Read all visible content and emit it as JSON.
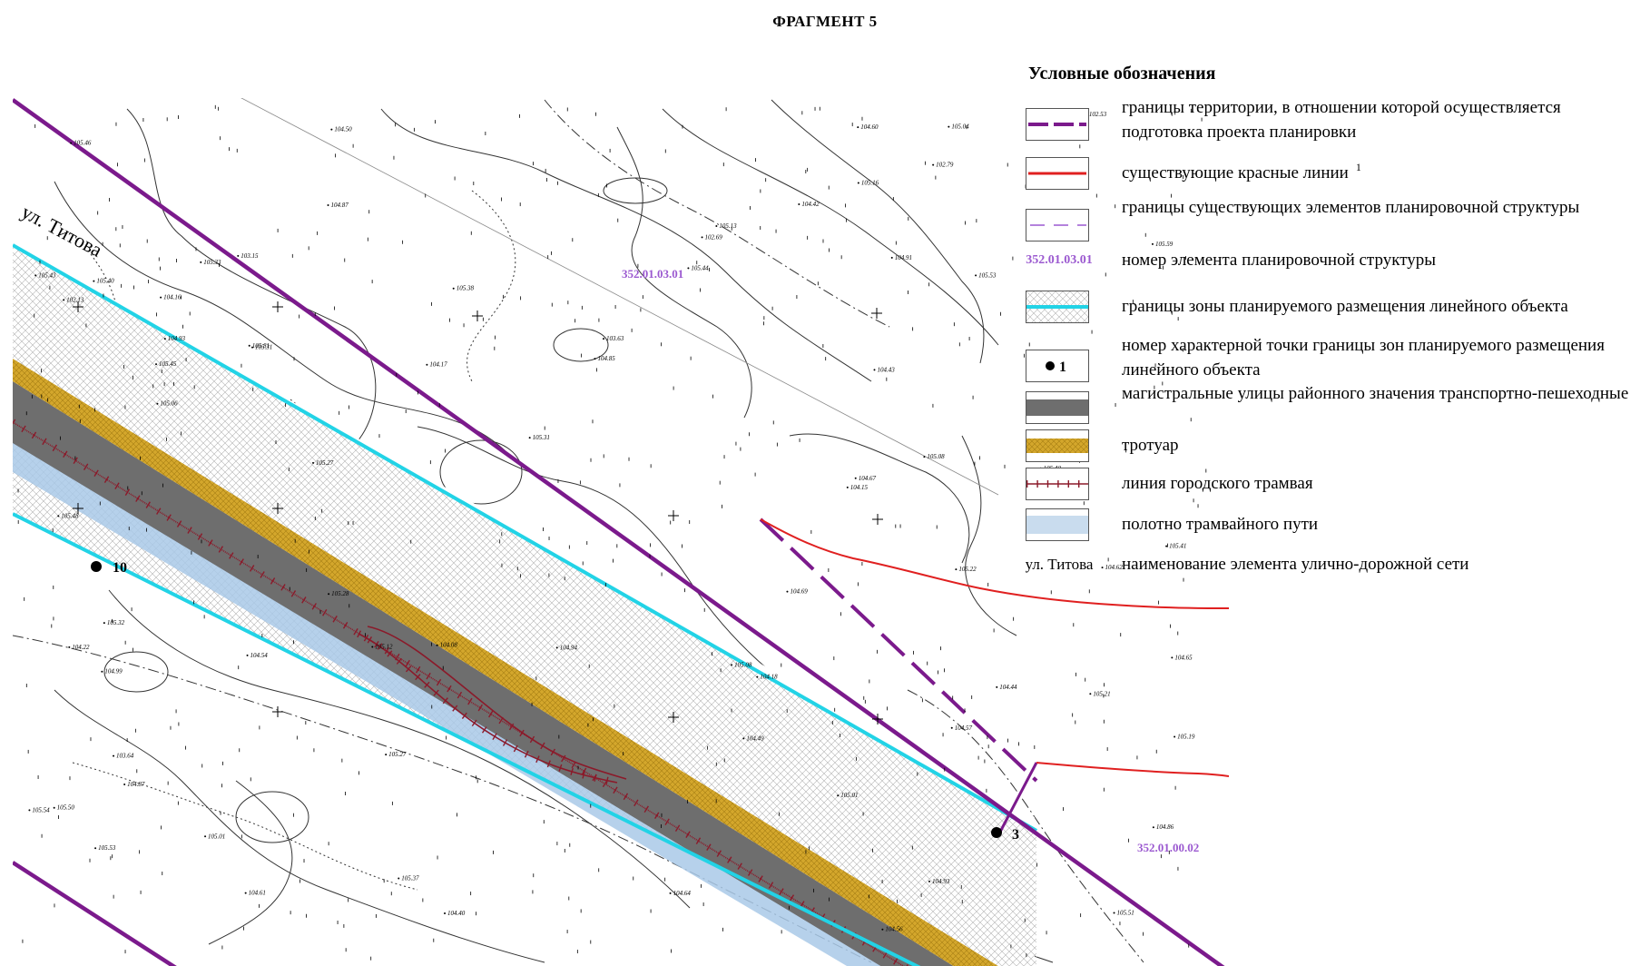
{
  "title": "ФРАГМЕНТ 5",
  "legend": {
    "title": "Условные обозначения",
    "items": [
      {
        "id": "boundary",
        "text": "границы территории, в отношении которой осуществляется подготовка проекта планировки"
      },
      {
        "id": "red-lines",
        "text": "существующие красные линии",
        "footnote": "1"
      },
      {
        "id": "elements",
        "text": "границы существующих элементов планировочной структуры"
      },
      {
        "id": "element-number",
        "sample": "352.01.03.01",
        "text": "номер элемента планировочной структуры"
      },
      {
        "id": "zone",
        "text": "границы зоны планируемого размещения линейного объекта"
      },
      {
        "id": "point",
        "sample": "1",
        "text": "номер характерной точки границы зон планируемого размещения линейного объекта"
      },
      {
        "id": "road",
        "text": "магистральные улицы районного значения транспортно-пешеходные"
      },
      {
        "id": "sidewalk",
        "text": "тротуар"
      },
      {
        "id": "tram-line",
        "text": "линия городского трамвая"
      },
      {
        "id": "tram-bed",
        "text": "полотно трамвайного пути"
      },
      {
        "id": "street-name",
        "sample": "ул. Титова",
        "text": "наименование элемента улично-дорожной сети"
      }
    ]
  },
  "map": {
    "street_label": "ул. Титова",
    "element_labels": [
      "352.01.03.01",
      "352.01.00.02"
    ],
    "points": [
      "10",
      "3"
    ],
    "colors": {
      "boundary": "#7b1a8c",
      "red_line": "#e02020",
      "zone": "#22d3e6",
      "road": "#6e6e6e",
      "sidewalk": "#d4a72c",
      "tram_line": "#8b1a2a",
      "tram_bed": "#a9c9e8",
      "element_label": "#9b59d0"
    },
    "elevations": [
      "105.04",
      "105.08",
      "105.22",
      "105.25",
      "104.94",
      "104.93",
      "104.87",
      "104.08",
      "104.91",
      "104.60",
      "104.57",
      "104.22",
      "104.16",
      "104.93",
      "104.65",
      "104.49",
      "104.69",
      "104.62",
      "104.64",
      "104.56",
      "104.54",
      "104.87",
      "105.01",
      "105.45",
      "105.32",
      "105.40",
      "105.50",
      "105.27",
      "105.13",
      "105.28",
      "105.37",
      "105.31",
      "105.01",
      "105.31",
      "105.43",
      "105.46",
      "105.41",
      "105.38",
      "105.27",
      "105.12",
      "105.08",
      "105.06",
      "105.16",
      "105.53",
      "105.59",
      "105.44",
      "105.40",
      "105.33",
      "105.81",
      "105.51",
      "105.19",
      "105.21",
      "105.48",
      "105.53",
      "103.64",
      "104.42",
      "104.86",
      "105.54",
      "103.15",
      "102.79",
      "102.13",
      "102.53",
      "102.69",
      "103.63",
      "104.61",
      "104.15",
      "104.43",
      "104.17",
      "104.85",
      "104.99",
      "104.67",
      "104.50",
      "104.44",
      "104.18",
      "104.40"
    ]
  }
}
